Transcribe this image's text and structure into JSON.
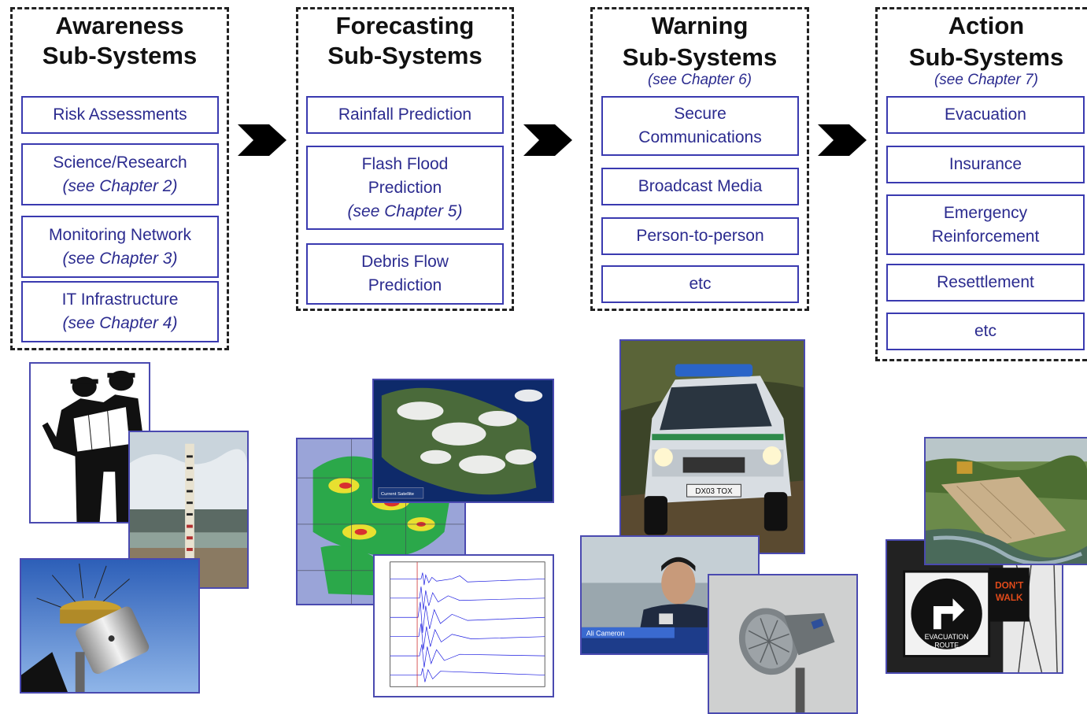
{
  "groups": [
    {
      "title_line1": "Awareness",
      "title_line2": "Sub-Systems",
      "subtitle": "",
      "boxes": [
        {
          "line1": "Risk Assessments",
          "line2": "",
          "line3": ""
        },
        {
          "line1": "Science/Research",
          "line2": "",
          "line3": "(see Chapter 2)"
        },
        {
          "line1": "Monitoring Network",
          "line2": "",
          "line3": "(see Chapter 3)"
        },
        {
          "line1": "IT Infrastructure",
          "line2": "",
          "line3": "(see Chapter 4)"
        }
      ]
    },
    {
      "title_line1": "Forecasting",
      "title_line2": "Sub-Systems",
      "subtitle": "",
      "boxes": [
        {
          "line1": "Rainfall Prediction",
          "line2": "",
          "line3": ""
        },
        {
          "line1": "Flash Flood",
          "line2": "Prediction",
          "line3": "(see Chapter 5)"
        },
        {
          "line1": "Debris Flow",
          "line2": "Prediction",
          "line3": ""
        }
      ]
    },
    {
      "title_line1": "Warning",
      "title_line2": "Sub-Systems",
      "subtitle": "(see Chapter 6)",
      "boxes": [
        {
          "line1": "Secure",
          "line2": "Communications",
          "line3": ""
        },
        {
          "line1": "Broadcast Media",
          "line2": "",
          "line3": ""
        },
        {
          "line1": "Person-to-person",
          "line2": "",
          "line3": ""
        },
        {
          "line1": "etc",
          "line2": "",
          "line3": ""
        }
      ]
    },
    {
      "title_line1": "Action",
      "title_line2": "Sub-Systems",
      "subtitle": "(see Chapter 7)",
      "boxes": [
        {
          "line1": "Evacuation",
          "line2": "",
          "line3": ""
        },
        {
          "line1": "Insurance",
          "line2": "",
          "line3": ""
        },
        {
          "line1": "Emergency",
          "line2": "Reinforcement",
          "line3": ""
        },
        {
          "line1": "Resettlement",
          "line2": "",
          "line3": ""
        },
        {
          "line1": "etc",
          "line2": "",
          "line3": ""
        }
      ]
    }
  ],
  "photos": {
    "police_car_plate": "DX03 TOX",
    "news_banner": "Ali Cameron",
    "sign_text_1": "EVACUATION",
    "sign_text_2": "ROUTE",
    "dont_walk_1": "DON'T",
    "dont_walk_2": "WALK",
    "satellite_label": "Current Satellite"
  },
  "colors": {
    "box_border": "#3a3ab0",
    "box_text": "#2b2b8f",
    "dashed_border": "#222222",
    "arrow": "#000000"
  }
}
